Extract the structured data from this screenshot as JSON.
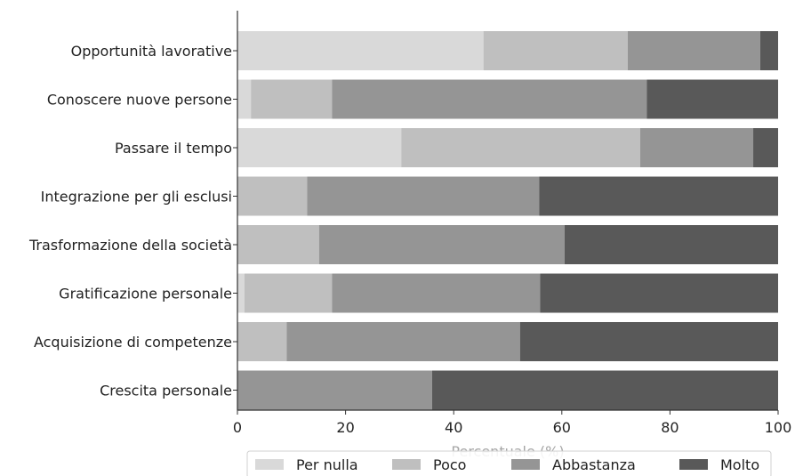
{
  "chart_data": {
    "type": "bar",
    "orientation": "horizontal",
    "stacked": true,
    "categories": [
      "Opportunità lavorative",
      "Conoscere nuove persone",
      "Passare il tempo",
      "Integrazione per gli esclusi",
      "Trasformazione della società",
      "Gratificazione personale",
      "Acquisizione di competenze",
      "Crescita personale"
    ],
    "series": [
      {
        "name": "Per nulla",
        "color": "#d9d9d9",
        "values": [
          45.5,
          2.5,
          30.3,
          0,
          0,
          1.3,
          0,
          0
        ]
      },
      {
        "name": "Poco",
        "color": "#bfbfbf",
        "values": [
          26.7,
          15.0,
          44.2,
          12.9,
          15.1,
          16.2,
          9.1,
          0
        ]
      },
      {
        "name": "Abbastanza",
        "color": "#959595",
        "values": [
          24.5,
          58.2,
          20.9,
          42.9,
          45.4,
          38.5,
          43.2,
          36.0
        ]
      },
      {
        "name": "Molto",
        "color": "#595959",
        "values": [
          3.3,
          24.3,
          4.6,
          44.2,
          39.5,
          44.0,
          47.7,
          64.0
        ]
      }
    ],
    "xlim": [
      0,
      100
    ],
    "xticks": [
      0,
      20,
      40,
      60,
      80,
      100
    ],
    "xlabel": "Percentuale (%)",
    "ylabel": "",
    "title": "",
    "grid": false,
    "legend": "bottom"
  }
}
